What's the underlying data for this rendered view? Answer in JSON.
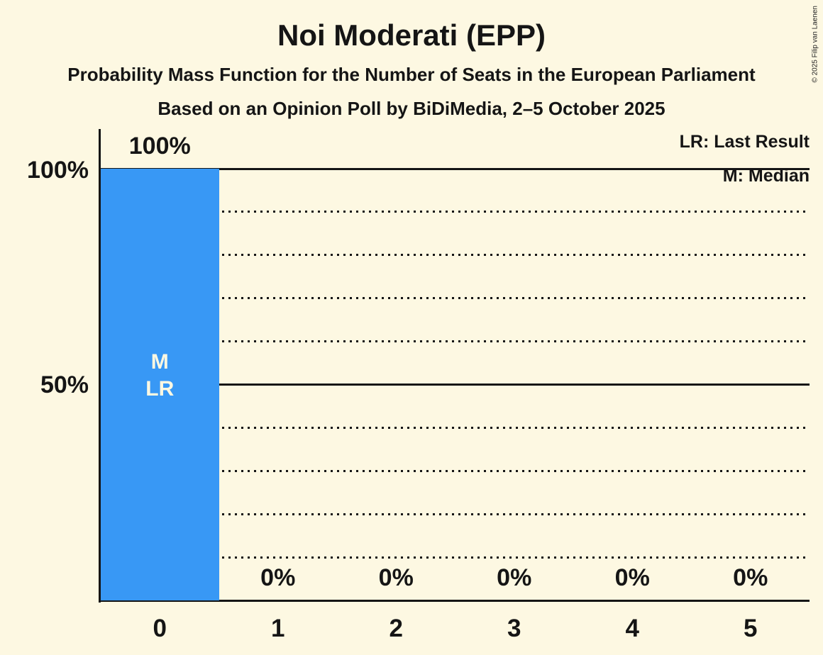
{
  "title": "Noi Moderati (EPP)",
  "subtitle": "Probability Mass Function for the Number of Seats in the European Parliament",
  "source_line": "Based on an Opinion Poll by BiDiMedia, 2–5 October 2025",
  "copyright": "© 2025 Filip van Laenen",
  "legend": {
    "lr": "LR: Last Result",
    "m": "M: Median"
  },
  "y_axis": {
    "top_label": "100%",
    "mid_label": "50%"
  },
  "colors": {
    "background": "#FDF8E2",
    "bar": "#3898F5",
    "text": "#151515",
    "bar_label_text": "#FDF8E2"
  },
  "chart_data": {
    "type": "bar",
    "title": "Noi Moderati (EPP)",
    "categories": [
      "0",
      "1",
      "2",
      "3",
      "4",
      "5"
    ],
    "values": [
      100,
      0,
      0,
      0,
      0,
      0
    ],
    "value_labels": [
      "100%",
      "0%",
      "0%",
      "0%",
      "0%",
      "0%"
    ],
    "ylim": [
      0,
      100
    ],
    "y_tick_labels": [
      "100%",
      "50%"
    ],
    "y_tick_values": [
      100,
      50
    ],
    "gridlines": {
      "dotted_step": 10,
      "solid_step": 50,
      "max": 100
    },
    "legend_position": "top-right",
    "bar_annotation": {
      "category_index": 0,
      "lines": [
        "M",
        "LR"
      ]
    }
  }
}
